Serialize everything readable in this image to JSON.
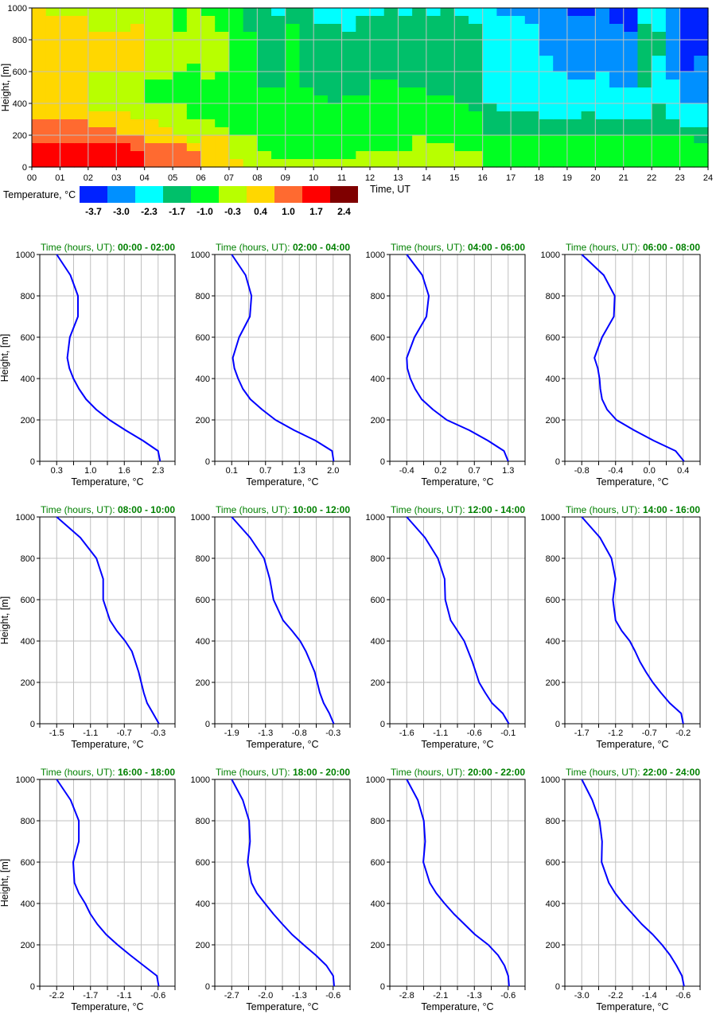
{
  "chart_data": [
    {
      "type": "heatmap",
      "xlabel": "Time, UT",
      "ylabel": "Height, [m]",
      "xlim": [
        0,
        24
      ],
      "ylim": [
        0,
        1000
      ],
      "grid": true,
      "x_tick_labels": [
        "00",
        "01",
        "02",
        "03",
        "04",
        "05",
        "06",
        "07",
        "08",
        "09",
        "10",
        "11",
        "12",
        "13",
        "14",
        "15",
        "16",
        "17",
        "18",
        "19",
        "20",
        "21",
        "22",
        "23",
        "24"
      ],
      "y_tick_labels": [
        "0",
        "200",
        "400",
        "600",
        "800",
        "1000"
      ],
      "colorbar": {
        "label": "Temperature, °C",
        "values": [
          "-3.7",
          "-3.0",
          "-2.3",
          "-1.7",
          "-1.0",
          "-0.3",
          "0.4",
          "1.0",
          "1.7",
          "2.4"
        ],
        "colors": [
          "#0022ff",
          "#0090ff",
          "#00ffff",
          "#00c06a",
          "#00ff22",
          "#b8ff00",
          "#ffd700",
          "#ff6a30",
          "#ff0000",
          "#7f0000"
        ]
      },
      "column_step_hours": 0.5,
      "row_step_m": 50,
      "columns_top_to_bottom_class_index": [
        "66666666666666777888",
        "56666666666666777888",
        "56666666666666777888",
        "56666666666666777888",
        "55566666555556677888",
        "55566666555556677888",
        "55566666555556667888",
        "55666666555555667788",
        "55555555544455666777",
        "55555555544455566777",
        "44455555444455556777",
        "55555554444444555677",
        "45555555544444556666",
        "44455555444444456666",
        "44444444444444445556",
        "33344444444444445555",
        "33333333334444444455",
        "23333333334444444445",
        "33444444444444444445",
        "33333333334444444445",
        "22333333333444444445",
        "22333333333344444445",
        "22233333333444444445",
        "23333333333444444455",
        "23333333344444444455",
        "33333333344444444455",
        "23333333334444444455",
        "33333333334444445555",
        "23333333333444444555",
        "33333333333444444555",
        "23333333333344444455",
        "22333333333334444455",
        "22222222222233334444",
        "12222222222223334444",
        "12222222222223334444",
        "11222222222223334444",
        "11111122222222334444",
        "11111111222222334444",
        "01111111122222334444",
        "01111111122223334444",
        "11111111222222334444",
        "00111111112222334444",
        "00011111112222334444",
        "22333333332222334444",
        "22233322222233334444",
        "11111111122222334444",
        "00000000111122234444",
        "00000011111122233444"
      ]
    },
    {
      "type": "line",
      "title_prefix": "Time (hours, UT): ",
      "range": "00:00 - 02:00",
      "xlabel": "Temperature, °C",
      "ylabel": "Height, [m]",
      "x_tick_labels": [
        "0.3",
        "1.0",
        "1.6",
        "2.3"
      ],
      "y": [
        0,
        50,
        100,
        150,
        200,
        250,
        300,
        350,
        400,
        450,
        500,
        600,
        700,
        800,
        900,
        1000
      ],
      "x": [
        2.34,
        2.3,
        2.0,
        1.66,
        1.34,
        1.08,
        0.88,
        0.74,
        0.63,
        0.55,
        0.51,
        0.56,
        0.72,
        0.72,
        0.57,
        0.3
      ]
    },
    {
      "type": "line",
      "title_prefix": "Time (hours, UT): ",
      "range": "02:00 - 04:00",
      "xlabel": "Temperature, °C",
      "x_tick_labels": [
        "0.1",
        "0.7",
        "1.3",
        "2.0"
      ],
      "y": [
        0,
        50,
        100,
        150,
        200,
        250,
        300,
        350,
        400,
        450,
        500,
        600,
        700,
        800,
        900,
        1000
      ],
      "x": [
        2.01,
        1.98,
        1.67,
        1.27,
        0.92,
        0.67,
        0.45,
        0.31,
        0.22,
        0.15,
        0.12,
        0.24,
        0.44,
        0.47,
        0.36,
        0.1
      ]
    },
    {
      "type": "line",
      "title_prefix": "Time (hours, UT): ",
      "range": "04:00 - 06:00",
      "xlabel": "Temperature, °C",
      "x_tick_labels": [
        "-0.4",
        "0.2",
        "0.7",
        "1.3"
      ],
      "y": [
        0,
        50,
        100,
        150,
        200,
        250,
        300,
        350,
        400,
        450,
        500,
        600,
        700,
        800,
        900,
        1000
      ],
      "x": [
        1.3,
        1.23,
        0.96,
        0.65,
        0.27,
        0.04,
        -0.15,
        -0.26,
        -0.34,
        -0.39,
        -0.4,
        -0.27,
        -0.07,
        -0.03,
        -0.14,
        -0.4
      ]
    },
    {
      "type": "line",
      "title_prefix": "Time (hours, UT): ",
      "range": "06:00 - 08:00",
      "xlabel": "Temperature, °C",
      "x_tick_labels": [
        "-0.8",
        "-0.4",
        "0.0",
        "0.4"
      ],
      "y": [
        0,
        50,
        100,
        150,
        200,
        250,
        300,
        350,
        400,
        450,
        500,
        600,
        700,
        800,
        900,
        1000
      ],
      "x": [
        0.41,
        0.31,
        0.05,
        -0.18,
        -0.39,
        -0.5,
        -0.56,
        -0.58,
        -0.59,
        -0.61,
        -0.65,
        -0.56,
        -0.42,
        -0.41,
        -0.54,
        -0.8
      ]
    },
    {
      "type": "line",
      "title_prefix": "Time (hours, UT): ",
      "range": "08:00 - 10:00",
      "xlabel": "Temperature, °C",
      "ylabel": "Height, [m]",
      "x_tick_labels": [
        "-1.5",
        "-1.1",
        "-0.7",
        "-0.3"
      ],
      "y": [
        0,
        50,
        100,
        150,
        200,
        250,
        300,
        350,
        400,
        450,
        500,
        600,
        700,
        800,
        900,
        1000
      ],
      "x": [
        -0.29,
        -0.36,
        -0.43,
        -0.47,
        -0.5,
        -0.53,
        -0.57,
        -0.61,
        -0.69,
        -0.79,
        -0.87,
        -0.95,
        -0.95,
        -1.03,
        -1.22,
        -1.5
      ]
    },
    {
      "type": "line",
      "title_prefix": "Time (hours, UT): ",
      "range": "10:00 - 12:00",
      "xlabel": "Temperature, °C",
      "x_tick_labels": [
        "-1.9",
        "-1.3",
        "-0.8",
        "-0.3"
      ],
      "y": [
        0,
        50,
        100,
        150,
        200,
        250,
        300,
        350,
        400,
        450,
        500,
        600,
        700,
        800,
        900,
        1000
      ],
      "x": [
        -0.29,
        -0.36,
        -0.45,
        -0.51,
        -0.55,
        -0.59,
        -0.66,
        -0.73,
        -0.82,
        -0.95,
        -1.09,
        -1.24,
        -1.3,
        -1.39,
        -1.61,
        -1.9
      ]
    },
    {
      "type": "line",
      "title_prefix": "Time (hours, UT): ",
      "range": "12:00 - 14:00",
      "xlabel": "Temperature, °C",
      "x_tick_labels": [
        "-1.6",
        "-1.1",
        "-0.6",
        "-0.1"
      ],
      "y": [
        0,
        50,
        100,
        150,
        200,
        250,
        300,
        350,
        400,
        450,
        500,
        600,
        700,
        800,
        900,
        1000
      ],
      "x": [
        -0.09,
        -0.18,
        -0.34,
        -0.44,
        -0.53,
        -0.58,
        -0.63,
        -0.69,
        -0.75,
        -0.85,
        -0.95,
        -1.03,
        -1.04,
        -1.14,
        -1.33,
        -1.6
      ]
    },
    {
      "type": "line",
      "title_prefix": "Time (hours, UT): ",
      "range": "14:00 - 16:00",
      "xlabel": "Temperature, °C",
      "x_tick_labels": [
        "-1.7",
        "-1.2",
        "-0.7",
        "-0.2"
      ],
      "y": [
        0,
        50,
        100,
        150,
        200,
        250,
        300,
        350,
        400,
        450,
        500,
        600,
        700,
        800,
        900,
        1000
      ],
      "x": [
        -0.2,
        -0.23,
        -0.4,
        -0.53,
        -0.65,
        -0.75,
        -0.84,
        -0.91,
        -0.99,
        -1.11,
        -1.2,
        -1.24,
        -1.2,
        -1.26,
        -1.43,
        -1.7
      ]
    },
    {
      "type": "line",
      "title_prefix": "Time (hours, UT): ",
      "range": "16:00 - 18:00",
      "xlabel": "Temperature, °C",
      "ylabel": "Height, [m]",
      "x_tick_labels": [
        "-2.2",
        "-1.7",
        "-1.1",
        "-0.6"
      ],
      "y": [
        0,
        50,
        100,
        150,
        200,
        250,
        300,
        350,
        400,
        450,
        500,
        600,
        700,
        800,
        900,
        1000
      ],
      "x": [
        -0.59,
        -0.62,
        -0.83,
        -1.04,
        -1.24,
        -1.42,
        -1.56,
        -1.67,
        -1.75,
        -1.85,
        -1.92,
        -1.94,
        -1.85,
        -1.85,
        -1.98,
        -2.2
      ]
    },
    {
      "type": "line",
      "title_prefix": "Time (hours, UT): ",
      "range": "18:00 - 20:00",
      "xlabel": "Temperature, °C",
      "x_tick_labels": [
        "-2.7",
        "-2.0",
        "-1.3",
        "-0.6"
      ],
      "y": [
        0,
        50,
        100,
        150,
        200,
        250,
        300,
        350,
        400,
        450,
        500,
        600,
        700,
        800,
        900,
        1000
      ],
      "x": [
        -0.58,
        -0.6,
        -0.74,
        -0.96,
        -1.21,
        -1.45,
        -1.65,
        -1.84,
        -2.01,
        -2.18,
        -2.29,
        -2.37,
        -2.32,
        -2.34,
        -2.47,
        -2.7
      ]
    },
    {
      "type": "line",
      "title_prefix": "Time (hours, UT): ",
      "range": "20:00 - 22:00",
      "xlabel": "Temperature, °C",
      "x_tick_labels": [
        "-2.8",
        "-2.1",
        "-1.3",
        "-0.6"
      ],
      "y": [
        0,
        50,
        100,
        150,
        200,
        250,
        300,
        350,
        400,
        450,
        500,
        600,
        700,
        800,
        900,
        1000
      ],
      "x": [
        -0.58,
        -0.6,
        -0.68,
        -0.82,
        -1.03,
        -1.32,
        -1.55,
        -1.78,
        -1.98,
        -2.16,
        -2.3,
        -2.44,
        -2.4,
        -2.43,
        -2.56,
        -2.8
      ]
    },
    {
      "type": "line",
      "title_prefix": "Time (hours, UT): ",
      "range": "22:00 - 24:00",
      "xlabel": "Temperature, °C",
      "x_tick_labels": [
        "-3.0",
        "-2.2",
        "-1.4",
        "-0.6"
      ],
      "y": [
        0,
        50,
        100,
        150,
        200,
        250,
        300,
        350,
        400,
        450,
        500,
        600,
        700,
        800,
        900,
        1000
      ],
      "x": [
        -0.58,
        -0.63,
        -0.76,
        -0.91,
        -1.1,
        -1.32,
        -1.58,
        -1.8,
        -2.02,
        -2.21,
        -2.36,
        -2.53,
        -2.52,
        -2.58,
        -2.75,
        -3.0
      ]
    }
  ],
  "profile_y_tick_labels": [
    "0",
    "200",
    "400",
    "600",
    "800",
    "1000"
  ],
  "line_color": "#0000ff",
  "title_color": "#008000"
}
